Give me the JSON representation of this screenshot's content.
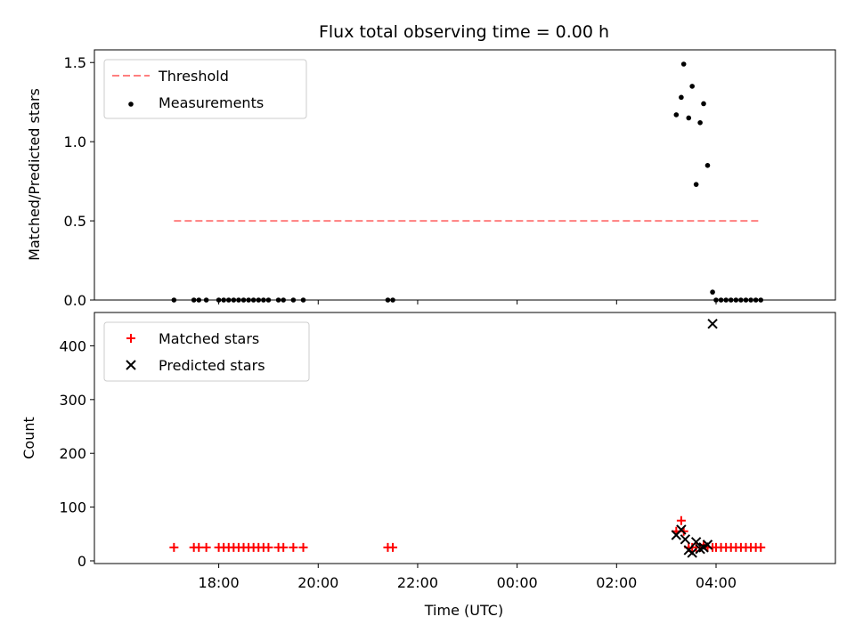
{
  "chart_data": [
    {
      "type": "scatter",
      "title": "Flux total observing time = 0.00 h",
      "xlabel": "",
      "ylabel": "Matched/Predicted stars",
      "ylim": [
        0,
        1.58
      ],
      "yticks": [
        "0.0",
        "0.5",
        "1.0",
        "1.5"
      ],
      "ytick_values": [
        0,
        0.5,
        1.0,
        1.5
      ],
      "xticks_shown": false,
      "legend_position": "top-left",
      "threshold": {
        "name": "Threshold",
        "value": 0.5,
        "x_range": [
          17.1,
          28.9
        ],
        "color": "#ff7f7f",
        "style": "dashed"
      },
      "series": [
        {
          "name": "Measurements",
          "marker": "dot",
          "color": "#000000",
          "points": [
            [
              17.1,
              0
            ],
            [
              17.5,
              0
            ],
            [
              17.6,
              0
            ],
            [
              17.75,
              0
            ],
            [
              18.0,
              0
            ],
            [
              18.1,
              0
            ],
            [
              18.2,
              0
            ],
            [
              18.3,
              0
            ],
            [
              18.4,
              0
            ],
            [
              18.5,
              0
            ],
            [
              18.6,
              0
            ],
            [
              18.7,
              0
            ],
            [
              18.8,
              0
            ],
            [
              18.9,
              0
            ],
            [
              19.0,
              0
            ],
            [
              19.2,
              0
            ],
            [
              19.3,
              0
            ],
            [
              19.5,
              0
            ],
            [
              19.7,
              0
            ],
            [
              21.4,
              0
            ],
            [
              21.5,
              0
            ],
            [
              27.2,
              1.17
            ],
            [
              27.3,
              1.28
            ],
            [
              27.35,
              1.49
            ],
            [
              27.45,
              1.15
            ],
            [
              27.52,
              1.35
            ],
            [
              27.6,
              0.73
            ],
            [
              27.68,
              1.12
            ],
            [
              27.75,
              1.24
            ],
            [
              27.83,
              0.85
            ],
            [
              27.93,
              0.05
            ],
            [
              28.0,
              0
            ],
            [
              28.1,
              0
            ],
            [
              28.2,
              0
            ],
            [
              28.3,
              0
            ],
            [
              28.4,
              0
            ],
            [
              28.5,
              0
            ],
            [
              28.6,
              0
            ],
            [
              28.7,
              0
            ],
            [
              28.8,
              0
            ],
            [
              28.9,
              0
            ]
          ]
        }
      ]
    },
    {
      "type": "scatter",
      "title": "",
      "xlabel": "Time (UTC)",
      "ylabel": "Count",
      "ylim": [
        -5,
        462
      ],
      "xlim": [
        15.5,
        30.4
      ],
      "yticks": [
        "0",
        "100",
        "200",
        "300",
        "400"
      ],
      "ytick_values": [
        0,
        100,
        200,
        300,
        400
      ],
      "xticks": [
        "18:00",
        "20:00",
        "22:00",
        "00:00",
        "02:00",
        "04:00"
      ],
      "xtick_values": [
        18,
        20,
        22,
        24,
        26,
        28
      ],
      "legend_position": "top-left",
      "series": [
        {
          "name": "Matched stars",
          "marker": "plus",
          "color": "#ff0000",
          "points": [
            [
              17.1,
              25
            ],
            [
              17.5,
              25
            ],
            [
              17.6,
              25
            ],
            [
              17.75,
              25
            ],
            [
              18.0,
              25
            ],
            [
              18.1,
              25
            ],
            [
              18.2,
              25
            ],
            [
              18.3,
              25
            ],
            [
              18.4,
              25
            ],
            [
              18.5,
              25
            ],
            [
              18.6,
              25
            ],
            [
              18.7,
              25
            ],
            [
              18.8,
              25
            ],
            [
              18.9,
              25
            ],
            [
              19.0,
              25
            ],
            [
              19.2,
              25
            ],
            [
              19.3,
              25
            ],
            [
              19.5,
              25
            ],
            [
              19.7,
              25
            ],
            [
              21.4,
              25
            ],
            [
              21.5,
              25
            ],
            [
              27.2,
              55
            ],
            [
              27.3,
              75
            ],
            [
              27.35,
              55
            ],
            [
              27.45,
              25
            ],
            [
              27.52,
              25
            ],
            [
              27.6,
              25
            ],
            [
              27.68,
              25
            ],
            [
              27.75,
              30
            ],
            [
              27.83,
              25
            ],
            [
              27.93,
              25
            ],
            [
              28.0,
              25
            ],
            [
              28.1,
              25
            ],
            [
              28.2,
              25
            ],
            [
              28.3,
              25
            ],
            [
              28.4,
              25
            ],
            [
              28.5,
              25
            ],
            [
              28.6,
              25
            ],
            [
              28.7,
              25
            ],
            [
              28.8,
              25
            ],
            [
              28.9,
              25
            ]
          ]
        },
        {
          "name": "Predicted stars",
          "marker": "x",
          "color": "#000000",
          "points": [
            [
              27.2,
              48
            ],
            [
              27.3,
              58
            ],
            [
              27.38,
              40
            ],
            [
              27.45,
              20
            ],
            [
              27.52,
              15
            ],
            [
              27.6,
              35
            ],
            [
              27.68,
              22
            ],
            [
              27.75,
              25
            ],
            [
              27.83,
              30
            ],
            [
              27.93,
              441
            ]
          ]
        }
      ]
    }
  ]
}
